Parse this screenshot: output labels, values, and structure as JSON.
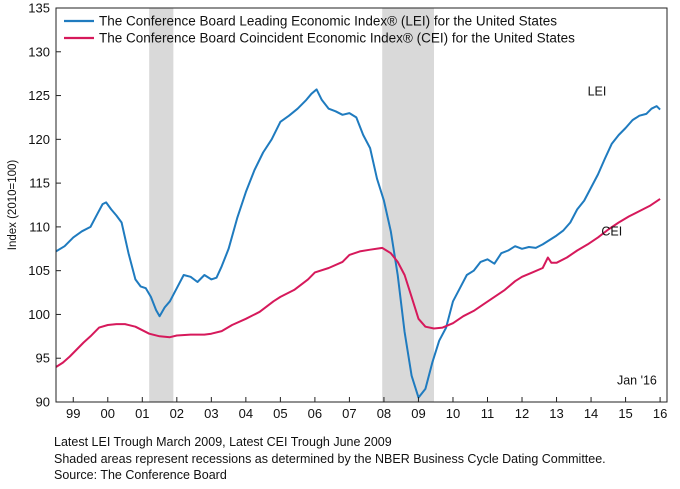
{
  "chart_data": {
    "type": "line",
    "ylabel": "Index (2010=100)",
    "ylim": [
      90,
      135
    ],
    "yticks": [
      90,
      95,
      100,
      105,
      110,
      115,
      120,
      125,
      130,
      135
    ],
    "xlim": [
      1998.5,
      2016.2
    ],
    "xticks": [
      {
        "x": 1999,
        "label": "99"
      },
      {
        "x": 2000,
        "label": "00"
      },
      {
        "x": 2001,
        "label": "01"
      },
      {
        "x": 2002,
        "label": "02"
      },
      {
        "x": 2003,
        "label": "03"
      },
      {
        "x": 2004,
        "label": "04"
      },
      {
        "x": 2005,
        "label": "05"
      },
      {
        "x": 2006,
        "label": "06"
      },
      {
        "x": 2007,
        "label": "07"
      },
      {
        "x": 2008,
        "label": "08"
      },
      {
        "x": 2009,
        "label": "09"
      },
      {
        "x": 2010,
        "label": "10"
      },
      {
        "x": 2011,
        "label": "11"
      },
      {
        "x": 2012,
        "label": "12"
      },
      {
        "x": 2013,
        "label": "13"
      },
      {
        "x": 2014,
        "label": "14"
      },
      {
        "x": 2015,
        "label": "15"
      },
      {
        "x": 2016,
        "label": "16"
      }
    ],
    "recessions": [
      [
        2001.2,
        2001.9
      ],
      [
        2007.95,
        2009.45
      ]
    ],
    "grid": false,
    "legend_position": "top-left",
    "annotation": "Jan '16",
    "series": [
      {
        "name": "The Conference Board Leading Economic Index® (LEI) for the United States",
        "label": "LEI",
        "color": "#1f7bbf",
        "points": [
          [
            1998.5,
            107.2
          ],
          [
            1998.75,
            107.8
          ],
          [
            1999.0,
            108.8
          ],
          [
            1999.25,
            109.5
          ],
          [
            1999.5,
            110.0
          ],
          [
            1999.7,
            111.5
          ],
          [
            1999.85,
            112.6
          ],
          [
            1999.95,
            112.8
          ],
          [
            2000.1,
            112.0
          ],
          [
            2000.25,
            111.3
          ],
          [
            2000.4,
            110.5
          ],
          [
            2000.6,
            107.0
          ],
          [
            2000.8,
            104.0
          ],
          [
            2000.95,
            103.2
          ],
          [
            2001.1,
            103.0
          ],
          [
            2001.25,
            102.0
          ],
          [
            2001.4,
            100.5
          ],
          [
            2001.5,
            99.8
          ],
          [
            2001.65,
            100.8
          ],
          [
            2001.8,
            101.5
          ],
          [
            2002.0,
            103.0
          ],
          [
            2002.2,
            104.5
          ],
          [
            2002.4,
            104.3
          ],
          [
            2002.6,
            103.7
          ],
          [
            2002.8,
            104.5
          ],
          [
            2003.0,
            104.0
          ],
          [
            2003.15,
            104.2
          ],
          [
            2003.3,
            105.5
          ],
          [
            2003.5,
            107.5
          ],
          [
            2003.75,
            111.0
          ],
          [
            2004.0,
            114.0
          ],
          [
            2004.25,
            116.5
          ],
          [
            2004.5,
            118.5
          ],
          [
            2004.75,
            120.0
          ],
          [
            2005.0,
            122.0
          ],
          [
            2005.25,
            122.7
          ],
          [
            2005.5,
            123.5
          ],
          [
            2005.75,
            124.5
          ],
          [
            2005.9,
            125.2
          ],
          [
            2006.05,
            125.7
          ],
          [
            2006.2,
            124.5
          ],
          [
            2006.4,
            123.5
          ],
          [
            2006.6,
            123.2
          ],
          [
            2006.8,
            122.8
          ],
          [
            2007.0,
            123.0
          ],
          [
            2007.2,
            122.5
          ],
          [
            2007.4,
            120.5
          ],
          [
            2007.6,
            119.0
          ],
          [
            2007.8,
            115.5
          ],
          [
            2008.0,
            113.0
          ],
          [
            2008.2,
            109.5
          ],
          [
            2008.4,
            104.5
          ],
          [
            2008.6,
            98.0
          ],
          [
            2008.8,
            93.0
          ],
          [
            2009.0,
            90.5
          ],
          [
            2009.2,
            91.5
          ],
          [
            2009.4,
            94.5
          ],
          [
            2009.6,
            97.0
          ],
          [
            2009.8,
            98.5
          ],
          [
            2010.0,
            101.5
          ],
          [
            2010.2,
            103.0
          ],
          [
            2010.4,
            104.5
          ],
          [
            2010.6,
            105.0
          ],
          [
            2010.8,
            106.0
          ],
          [
            2011.0,
            106.3
          ],
          [
            2011.2,
            105.8
          ],
          [
            2011.4,
            107.0
          ],
          [
            2011.6,
            107.3
          ],
          [
            2011.8,
            107.8
          ],
          [
            2012.0,
            107.5
          ],
          [
            2012.2,
            107.7
          ],
          [
            2012.4,
            107.6
          ],
          [
            2012.6,
            108.0
          ],
          [
            2012.8,
            108.5
          ],
          [
            2013.0,
            109.0
          ],
          [
            2013.2,
            109.6
          ],
          [
            2013.4,
            110.5
          ],
          [
            2013.6,
            112.0
          ],
          [
            2013.8,
            113.0
          ],
          [
            2014.0,
            114.5
          ],
          [
            2014.2,
            116.0
          ],
          [
            2014.4,
            117.8
          ],
          [
            2014.6,
            119.5
          ],
          [
            2014.8,
            120.5
          ],
          [
            2015.0,
            121.3
          ],
          [
            2015.2,
            122.2
          ],
          [
            2015.4,
            122.7
          ],
          [
            2015.6,
            122.9
          ],
          [
            2015.75,
            123.5
          ],
          [
            2015.9,
            123.8
          ],
          [
            2016.0,
            123.4
          ]
        ]
      },
      {
        "name": "The Conference Board Coincident Economic Index® (CEI) for the United States",
        "label": "CEI",
        "color": "#d6195b",
        "points": [
          [
            1998.5,
            94.0
          ],
          [
            1998.7,
            94.5
          ],
          [
            1998.9,
            95.2
          ],
          [
            1999.1,
            96.0
          ],
          [
            1999.3,
            96.8
          ],
          [
            1999.5,
            97.5
          ],
          [
            1999.75,
            98.5
          ],
          [
            2000.0,
            98.8
          ],
          [
            2000.25,
            98.9
          ],
          [
            2000.5,
            98.9
          ],
          [
            2000.8,
            98.6
          ],
          [
            2001.0,
            98.2
          ],
          [
            2001.2,
            97.8
          ],
          [
            2001.5,
            97.5
          ],
          [
            2001.8,
            97.4
          ],
          [
            2002.0,
            97.6
          ],
          [
            2002.4,
            97.7
          ],
          [
            2002.8,
            97.7
          ],
          [
            2003.0,
            97.8
          ],
          [
            2003.3,
            98.1
          ],
          [
            2003.6,
            98.8
          ],
          [
            2004.0,
            99.5
          ],
          [
            2004.4,
            100.3
          ],
          [
            2004.8,
            101.5
          ],
          [
            2005.0,
            102.0
          ],
          [
            2005.4,
            102.8
          ],
          [
            2005.8,
            104.0
          ],
          [
            2006.0,
            104.8
          ],
          [
            2006.4,
            105.3
          ],
          [
            2006.8,
            106.0
          ],
          [
            2007.0,
            106.8
          ],
          [
            2007.3,
            107.2
          ],
          [
            2007.6,
            107.4
          ],
          [
            2007.95,
            107.6
          ],
          [
            2008.2,
            107.0
          ],
          [
            2008.4,
            106.0
          ],
          [
            2008.6,
            104.5
          ],
          [
            2008.8,
            102.0
          ],
          [
            2009.0,
            99.5
          ],
          [
            2009.2,
            98.6
          ],
          [
            2009.45,
            98.4
          ],
          [
            2009.7,
            98.5
          ],
          [
            2010.0,
            99.0
          ],
          [
            2010.3,
            99.8
          ],
          [
            2010.6,
            100.4
          ],
          [
            2010.9,
            101.2
          ],
          [
            2011.2,
            102.0
          ],
          [
            2011.5,
            102.8
          ],
          [
            2011.8,
            103.8
          ],
          [
            2012.0,
            104.3
          ],
          [
            2012.3,
            104.8
          ],
          [
            2012.6,
            105.3
          ],
          [
            2012.75,
            106.5
          ],
          [
            2012.85,
            105.9
          ],
          [
            2013.0,
            105.9
          ],
          [
            2013.3,
            106.5
          ],
          [
            2013.6,
            107.3
          ],
          [
            2013.9,
            108.0
          ],
          [
            2014.2,
            108.8
          ],
          [
            2014.5,
            109.7
          ],
          [
            2014.8,
            110.5
          ],
          [
            2015.1,
            111.2
          ],
          [
            2015.4,
            111.8
          ],
          [
            2015.7,
            112.4
          ],
          [
            2016.0,
            113.2
          ]
        ]
      }
    ]
  },
  "notes": [
    "Latest LEI Trough March 2009, Latest CEI Trough June 2009",
    "Shaded areas represent recessions as determined by the NBER Business Cycle Dating Committee.",
    "Source: The Conference Board"
  ]
}
